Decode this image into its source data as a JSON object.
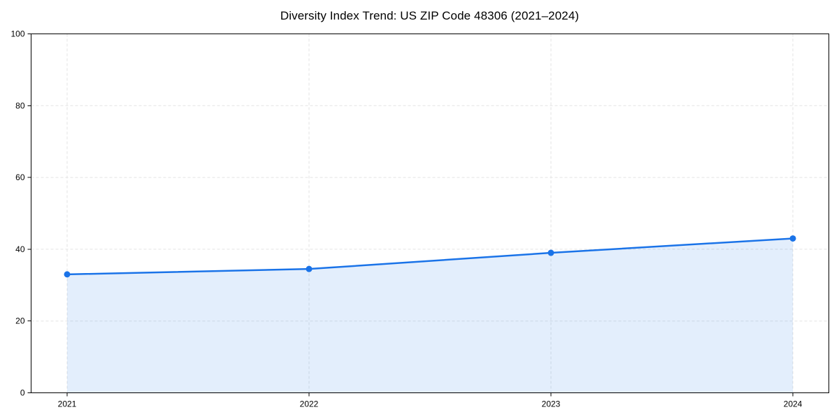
{
  "title": "Diversity Index Trend: US ZIP Code 48306 (2021–2024)",
  "chart_data": {
    "type": "line",
    "title": "Diversity Index Trend: US ZIP Code 48306 (2021–2024)",
    "categories": [
      "2021",
      "2022",
      "2023",
      "2024"
    ],
    "series": [
      {
        "name": "Diversity Index",
        "values": [
          33,
          34.5,
          39,
          43
        ]
      }
    ],
    "xlabel": "",
    "ylabel": "",
    "ylim": [
      0,
      100
    ],
    "yticks": [
      0,
      20,
      40,
      60,
      80,
      100
    ],
    "grid": true,
    "grid_style": "dashed",
    "legend": "none",
    "area_fill": true,
    "markers": true,
    "style": {
      "line_color": "#1a73e8",
      "marker_color": "#1a73e8",
      "fill_color": "rgba(26,115,232,0.12)",
      "grid_color": "#e3e3e3",
      "axis_color": "#000000",
      "tick_text_color": "#000000",
      "background": "#ffffff"
    }
  }
}
